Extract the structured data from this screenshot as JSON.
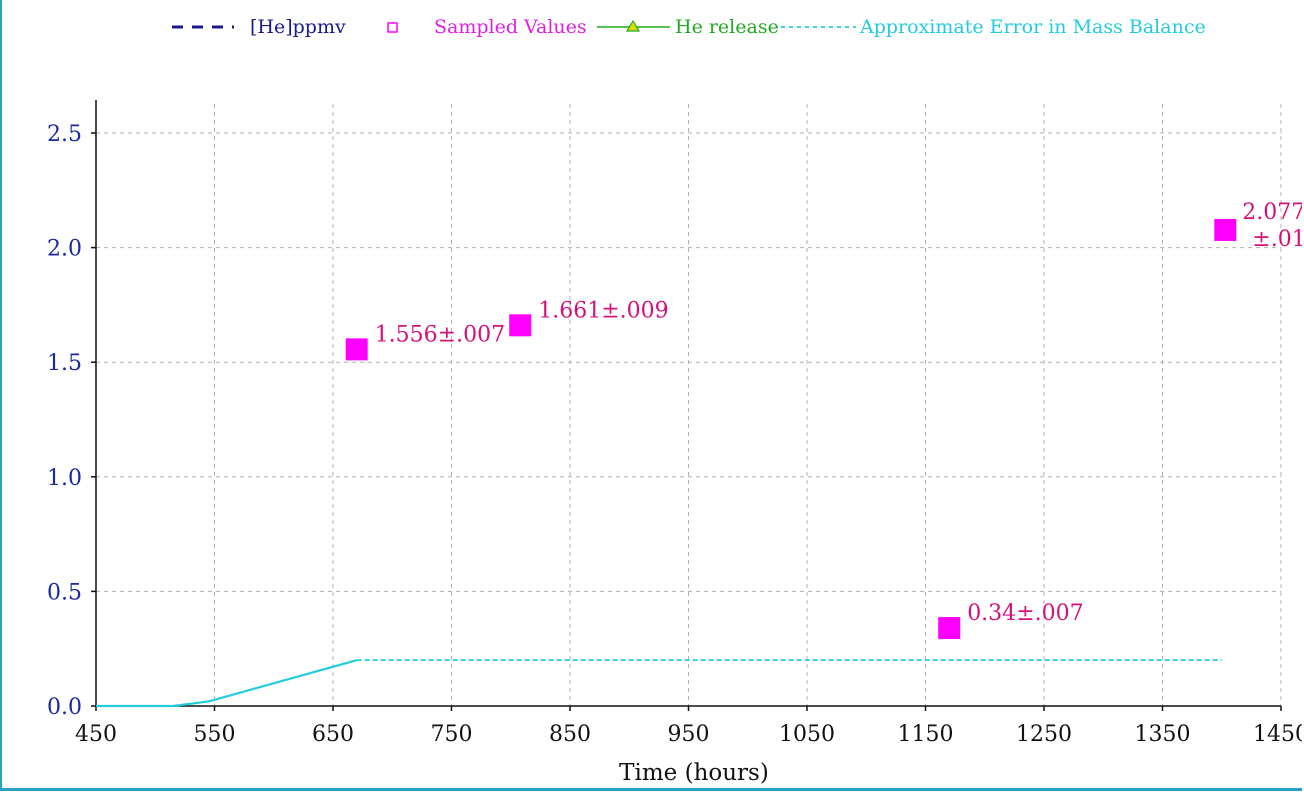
{
  "chart_data": {
    "type": "line",
    "title": "",
    "xlabel": "Time (hours)",
    "ylabel": "",
    "xlim": [
      450,
      1450
    ],
    "ylim": [
      0,
      2.5
    ],
    "x_ticks": [
      450,
      550,
      650,
      750,
      850,
      950,
      1050,
      1150,
      1250,
      1350,
      1450
    ],
    "x_tick_labels": [
      "450",
      "550",
      "650",
      "750",
      "850",
      "950",
      "1050",
      "1150",
      "1250",
      "1350",
      "1450"
    ],
    "y_ticks": [
      0,
      0.5,
      1.0,
      1.5,
      2.0,
      2.5
    ],
    "y_tick_labels": [
      "0.0",
      "0.5",
      "1.0",
      "1.5",
      "2.0",
      "2.5"
    ],
    "grid": true,
    "legend_position": "top",
    "legend": [
      {
        "label": "[He]ppmv",
        "color": "#1a1a8c",
        "style": "dashed"
      },
      {
        "label": "Sampled Values",
        "color": "#ff00ff",
        "style": "square-marker"
      },
      {
        "label": "He release",
        "color": "#22aa22",
        "style": "triangle-line"
      },
      {
        "label": "Approximate Error in Mass Balance",
        "color": "#22ccdd",
        "style": "dotted"
      }
    ],
    "series": [
      {
        "name": "Sampled Values",
        "color": "#ff00ff",
        "points": [
          {
            "x": 670,
            "y": 1.556,
            "label": "1.556±.007"
          },
          {
            "x": 808,
            "y": 1.661,
            "label": "1.661±.009"
          },
          {
            "x": 1170,
            "y": 0.34,
            "label": "0.34±.007"
          },
          {
            "x": 1403,
            "y": 2.077,
            "label_lines": [
              "2.077",
              "±.01"
            ]
          }
        ]
      },
      {
        "name": "Approximate Error in Mass Balance",
        "color": "#22ccdd",
        "x": [
          450,
          515,
          545,
          670,
          1400
        ],
        "y": [
          0,
          0,
          0.02,
          0.2,
          0.2
        ]
      }
    ]
  }
}
